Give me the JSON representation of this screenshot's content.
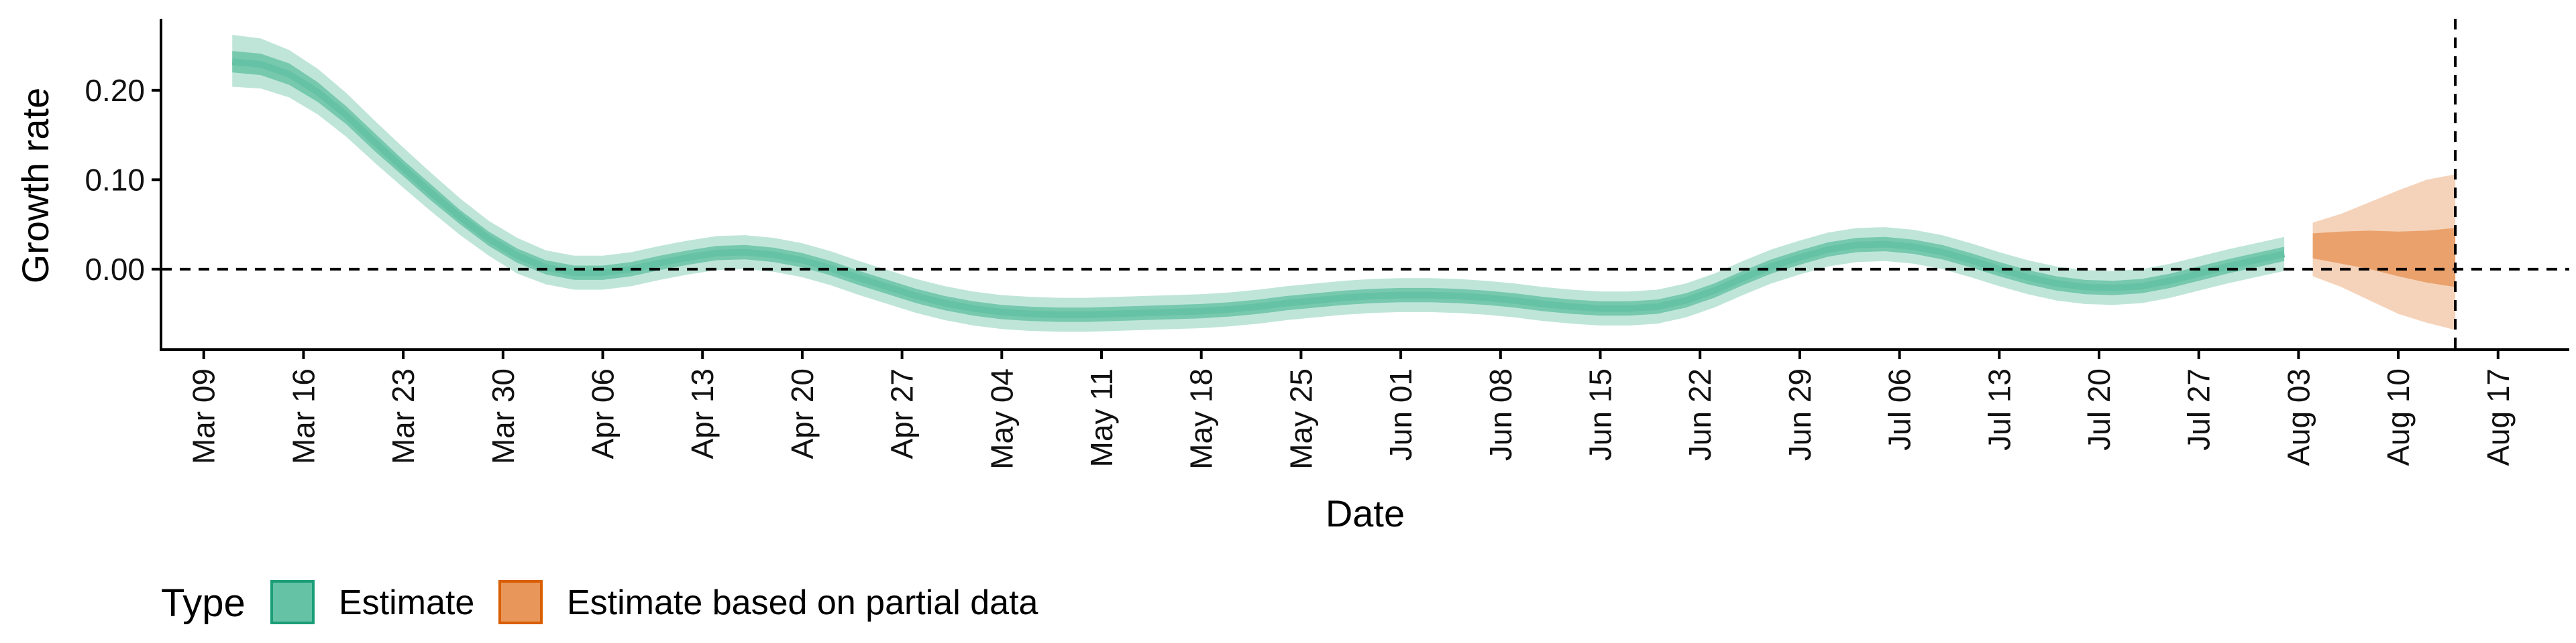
{
  "chart_data": {
    "type": "area",
    "xlabel": "Date",
    "ylabel": "Growth rate",
    "x_axis_type": "date",
    "xlim": [
      "2020-03-06",
      "2020-08-22"
    ],
    "ylim": [
      -0.09,
      0.28
    ],
    "x_ticks": [
      "2020-03-09",
      "2020-03-16",
      "2020-03-23",
      "2020-03-30",
      "2020-04-06",
      "2020-04-13",
      "2020-04-20",
      "2020-04-27",
      "2020-05-04",
      "2020-05-11",
      "2020-05-18",
      "2020-05-25",
      "2020-06-01",
      "2020-06-08",
      "2020-06-15",
      "2020-06-22",
      "2020-06-29",
      "2020-07-06",
      "2020-07-13",
      "2020-07-20",
      "2020-07-27",
      "2020-08-03",
      "2020-08-10",
      "2020-08-17"
    ],
    "x_tick_labels": [
      "Mar 09",
      "Mar 16",
      "Mar 23",
      "Mar 30",
      "Apr 06",
      "Apr 13",
      "Apr 20",
      "Apr 27",
      "May 04",
      "May 11",
      "May 18",
      "May 25",
      "Jun 01",
      "Jun 08",
      "Jun 15",
      "Jun 22",
      "Jun 29",
      "Jul 06",
      "Jul 13",
      "Jul 20",
      "Jul 27",
      "Aug 03",
      "Aug 10",
      "Aug 17"
    ],
    "y_ticks": [
      0.0,
      0.1,
      0.2
    ],
    "y_tick_labels": [
      "0.00",
      "0.10",
      "0.20"
    ],
    "reference_hline": 0,
    "reference_vline": "2020-08-14",
    "grid": false,
    "legend": {
      "title": "Type",
      "position": "bottom-left",
      "entries": [
        {
          "label": "Estimate",
          "color": "#66c2a5",
          "border": "#1b9e77"
        },
        {
          "label": "Estimate based on partial data",
          "color": "#e8965a",
          "border": "#d95f02"
        }
      ]
    },
    "series": [
      {
        "name": "Estimate",
        "color": "#66c2a5",
        "x": [
          "2020-03-11",
          "2020-03-13",
          "2020-03-15",
          "2020-03-17",
          "2020-03-19",
          "2020-03-21",
          "2020-03-23",
          "2020-03-25",
          "2020-03-27",
          "2020-03-29",
          "2020-03-31",
          "2020-04-02",
          "2020-04-04",
          "2020-04-06",
          "2020-04-08",
          "2020-04-10",
          "2020-04-12",
          "2020-04-14",
          "2020-04-16",
          "2020-04-18",
          "2020-04-20",
          "2020-04-22",
          "2020-04-24",
          "2020-04-26",
          "2020-04-28",
          "2020-04-30",
          "2020-05-02",
          "2020-05-04",
          "2020-05-06",
          "2020-05-08",
          "2020-05-10",
          "2020-05-12",
          "2020-05-14",
          "2020-05-16",
          "2020-05-18",
          "2020-05-20",
          "2020-05-22",
          "2020-05-24",
          "2020-05-26",
          "2020-05-28",
          "2020-05-30",
          "2020-06-01",
          "2020-06-03",
          "2020-06-05",
          "2020-06-07",
          "2020-06-09",
          "2020-06-11",
          "2020-06-13",
          "2020-06-15",
          "2020-06-17",
          "2020-06-19",
          "2020-06-21",
          "2020-06-23",
          "2020-06-25",
          "2020-06-27",
          "2020-06-29",
          "2020-07-01",
          "2020-07-03",
          "2020-07-05",
          "2020-07-07",
          "2020-07-09",
          "2020-07-11",
          "2020-07-13",
          "2020-07-15",
          "2020-07-17",
          "2020-07-19",
          "2020-07-21",
          "2020-07-23",
          "2020-07-25",
          "2020-07-27",
          "2020-07-29",
          "2020-07-31",
          "2020-08-02"
        ],
        "y": [
          0.232,
          0.229,
          0.218,
          0.198,
          0.172,
          0.142,
          0.113,
          0.085,
          0.058,
          0.034,
          0.015,
          0.002,
          -0.004,
          -0.004,
          0.0,
          0.007,
          0.013,
          0.018,
          0.019,
          0.016,
          0.01,
          0.001,
          -0.01,
          -0.02,
          -0.03,
          -0.038,
          -0.044,
          -0.048,
          -0.05,
          -0.051,
          -0.051,
          -0.05,
          -0.049,
          -0.048,
          -0.047,
          -0.045,
          -0.042,
          -0.038,
          -0.035,
          -0.032,
          -0.03,
          -0.029,
          -0.029,
          -0.03,
          -0.032,
          -0.035,
          -0.039,
          -0.042,
          -0.044,
          -0.044,
          -0.042,
          -0.035,
          -0.024,
          -0.01,
          0.003,
          0.013,
          0.022,
          0.027,
          0.028,
          0.025,
          0.019,
          0.01,
          0.0,
          -0.009,
          -0.016,
          -0.02,
          -0.021,
          -0.019,
          -0.013,
          -0.005,
          0.003,
          0.01,
          0.017
        ],
        "ci90_lower": [
          0.204,
          0.202,
          0.192,
          0.173,
          0.148,
          0.119,
          0.091,
          0.064,
          0.038,
          0.015,
          -0.005,
          -0.017,
          -0.023,
          -0.023,
          -0.019,
          -0.012,
          -0.006,
          -0.001,
          0.0,
          -0.003,
          -0.009,
          -0.018,
          -0.029,
          -0.039,
          -0.049,
          -0.057,
          -0.063,
          -0.067,
          -0.069,
          -0.07,
          -0.07,
          -0.069,
          -0.068,
          -0.067,
          -0.066,
          -0.064,
          -0.061,
          -0.057,
          -0.054,
          -0.051,
          -0.049,
          -0.048,
          -0.048,
          -0.049,
          -0.051,
          -0.054,
          -0.058,
          -0.061,
          -0.063,
          -0.063,
          -0.061,
          -0.054,
          -0.043,
          -0.029,
          -0.016,
          -0.006,
          0.003,
          0.008,
          0.009,
          0.006,
          0.0,
          -0.009,
          -0.019,
          -0.028,
          -0.035,
          -0.039,
          -0.04,
          -0.038,
          -0.032,
          -0.024,
          -0.016,
          -0.009,
          -0.002
        ],
        "ci90_upper": [
          0.262,
          0.258,
          0.245,
          0.224,
          0.197,
          0.166,
          0.136,
          0.107,
          0.079,
          0.054,
          0.035,
          0.021,
          0.015,
          0.015,
          0.019,
          0.026,
          0.032,
          0.037,
          0.038,
          0.035,
          0.029,
          0.02,
          0.009,
          -0.001,
          -0.011,
          -0.019,
          -0.025,
          -0.029,
          -0.031,
          -0.032,
          -0.032,
          -0.031,
          -0.03,
          -0.029,
          -0.028,
          -0.026,
          -0.023,
          -0.019,
          -0.016,
          -0.013,
          -0.011,
          -0.01,
          -0.01,
          -0.011,
          -0.013,
          -0.016,
          -0.02,
          -0.023,
          -0.025,
          -0.025,
          -0.023,
          -0.016,
          -0.005,
          0.009,
          0.022,
          0.032,
          0.041,
          0.046,
          0.047,
          0.044,
          0.038,
          0.029,
          0.019,
          0.01,
          0.003,
          -0.001,
          -0.002,
          0.0,
          0.006,
          0.014,
          0.022,
          0.029,
          0.036
        ],
        "ci50_lower": [
          0.22,
          0.217,
          0.206,
          0.187,
          0.162,
          0.132,
          0.104,
          0.076,
          0.05,
          0.026,
          0.007,
          -0.006,
          -0.012,
          -0.012,
          -0.008,
          -0.001,
          0.005,
          0.01,
          0.011,
          0.008,
          0.002,
          -0.007,
          -0.018,
          -0.028,
          -0.038,
          -0.046,
          -0.052,
          -0.056,
          -0.058,
          -0.059,
          -0.059,
          -0.058,
          -0.057,
          -0.056,
          -0.055,
          -0.053,
          -0.05,
          -0.046,
          -0.043,
          -0.04,
          -0.038,
          -0.037,
          -0.037,
          -0.038,
          -0.04,
          -0.043,
          -0.047,
          -0.05,
          -0.052,
          -0.052,
          -0.05,
          -0.043,
          -0.032,
          -0.018,
          -0.005,
          0.005,
          0.014,
          0.019,
          0.02,
          0.017,
          0.011,
          0.002,
          -0.008,
          -0.017,
          -0.024,
          -0.028,
          -0.029,
          -0.027,
          -0.021,
          -0.013,
          -0.005,
          0.002,
          0.009
        ],
        "ci50_upper": [
          0.244,
          0.241,
          0.23,
          0.209,
          0.182,
          0.152,
          0.122,
          0.094,
          0.066,
          0.042,
          0.023,
          0.01,
          0.004,
          0.004,
          0.008,
          0.015,
          0.021,
          0.026,
          0.027,
          0.024,
          0.018,
          0.009,
          -0.002,
          -0.012,
          -0.022,
          -0.03,
          -0.036,
          -0.04,
          -0.042,
          -0.043,
          -0.043,
          -0.042,
          -0.041,
          -0.04,
          -0.039,
          -0.037,
          -0.034,
          -0.03,
          -0.027,
          -0.024,
          -0.022,
          -0.021,
          -0.021,
          -0.022,
          -0.024,
          -0.027,
          -0.031,
          -0.034,
          -0.036,
          -0.036,
          -0.034,
          -0.027,
          -0.016,
          -0.002,
          0.011,
          0.021,
          0.03,
          0.035,
          0.036,
          0.033,
          0.027,
          0.018,
          0.008,
          -0.001,
          -0.008,
          -0.012,
          -0.013,
          -0.011,
          -0.005,
          0.003,
          0.011,
          0.018,
          0.025
        ]
      },
      {
        "name": "Estimate based on partial data",
        "color": "#e8965a",
        "x": [
          "2020-08-04",
          "2020-08-06",
          "2020-08-08",
          "2020-08-10",
          "2020-08-12",
          "2020-08-14"
        ],
        "ci90_lower": [
          -0.008,
          -0.02,
          -0.035,
          -0.05,
          -0.06,
          -0.068
        ],
        "ci90_upper": [
          0.052,
          0.062,
          0.075,
          0.088,
          0.1,
          0.106
        ],
        "ci50_lower": [
          0.012,
          0.006,
          0.0,
          -0.008,
          -0.015,
          -0.02
        ],
        "ci50_upper": [
          0.04,
          0.042,
          0.043,
          0.042,
          0.043,
          0.046
        ]
      }
    ]
  }
}
